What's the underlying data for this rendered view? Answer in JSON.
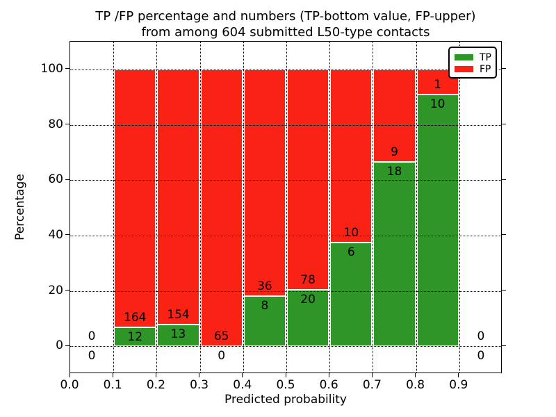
{
  "title": {
    "line1": "TP /FP percentage and numbers (TP-bottom value, FP-upper)",
    "line2": "from among 604 submitted L50-type contacts"
  },
  "chart_data": {
    "type": "bar",
    "stacked": true,
    "title": "TP /FP percentage and numbers (TP-bottom value, FP-upper)\nfrom among 604 submitted L50-type contacts",
    "xlabel": "Predicted probability",
    "ylabel": "Percentage",
    "xlim": [
      0.0,
      1.0
    ],
    "ylim": [
      -10,
      110
    ],
    "xticks": [
      "0.0",
      "0.1",
      "0.2",
      "0.3",
      "0.4",
      "0.5",
      "0.6",
      "0.7",
      "0.8",
      "0.9"
    ],
    "yticks": [
      0,
      20,
      40,
      60,
      80,
      100
    ],
    "grid": true,
    "grid_style": "dotted",
    "bin_width": 0.1,
    "total_contacts": 604,
    "colors": {
      "tp": "#2e9626",
      "fp": "#fa2115"
    },
    "legend": {
      "position": "upper right",
      "entries": [
        {
          "label": "TP",
          "color": "#2e9626"
        },
        {
          "label": "FP",
          "color": "#fa2115"
        }
      ]
    },
    "bins": [
      {
        "x_start": 0.0,
        "tp": 0,
        "fp": 0,
        "tp_pct": null,
        "has_bar": false
      },
      {
        "x_start": 0.1,
        "tp": 12,
        "fp": 164,
        "tp_pct": 6.82,
        "has_bar": true
      },
      {
        "x_start": 0.2,
        "tp": 13,
        "fp": 154,
        "tp_pct": 7.78,
        "has_bar": true
      },
      {
        "x_start": 0.3,
        "tp": 0,
        "fp": 65,
        "tp_pct": 0.0,
        "has_bar": true
      },
      {
        "x_start": 0.4,
        "tp": 8,
        "fp": 36,
        "tp_pct": 18.18,
        "has_bar": true
      },
      {
        "x_start": 0.5,
        "tp": 20,
        "fp": 78,
        "tp_pct": 20.41,
        "has_bar": true
      },
      {
        "x_start": 0.6,
        "tp": 6,
        "fp": 10,
        "tp_pct": 37.5,
        "has_bar": true
      },
      {
        "x_start": 0.7,
        "tp": 18,
        "fp": 9,
        "tp_pct": 66.67,
        "has_bar": true
      },
      {
        "x_start": 0.8,
        "tp": 10,
        "fp": 1,
        "tp_pct": 90.91,
        "has_bar": true
      },
      {
        "x_start": 0.9,
        "tp": 0,
        "fp": 0,
        "tp_pct": null,
        "has_bar": false
      }
    ]
  }
}
